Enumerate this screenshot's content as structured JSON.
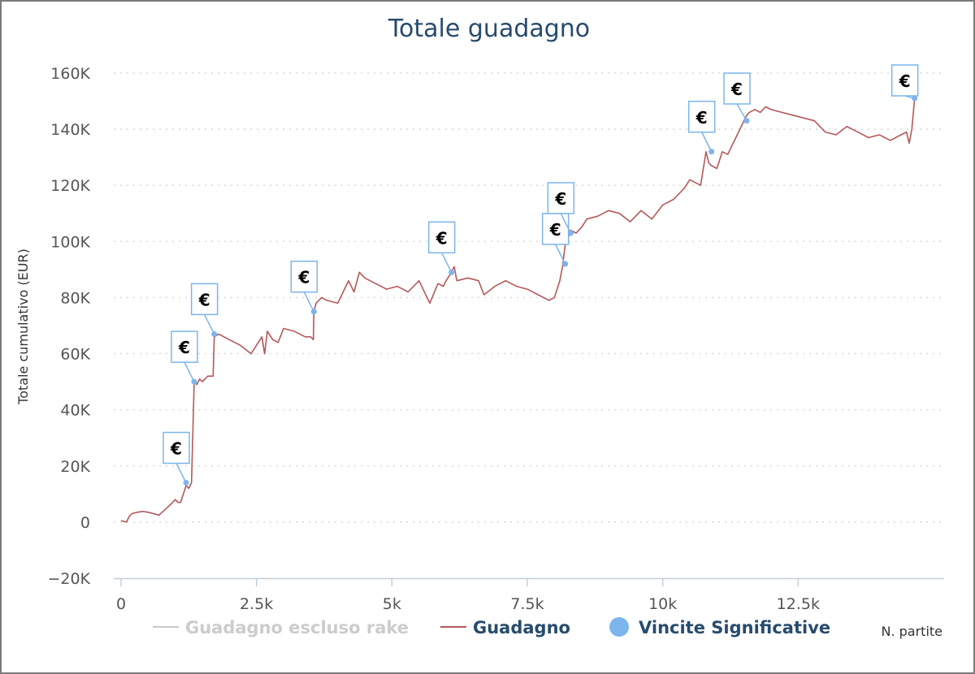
{
  "chart_data": {
    "type": "line",
    "title": "Totale guadagno",
    "ylabel": "Totale cumulativo (EUR)",
    "xlabel": "N. partite",
    "xlim": [
      0,
      15000
    ],
    "ylim": [
      -20000,
      160000
    ],
    "y_ticks": [
      -20000,
      0,
      20000,
      40000,
      60000,
      80000,
      100000,
      120000,
      140000,
      160000
    ],
    "y_tick_labels": [
      "−20K",
      "0",
      "20K",
      "40K",
      "60K",
      "80K",
      "100K",
      "120K",
      "140K",
      "160K"
    ],
    "x_ticks": [
      0,
      2500,
      5000,
      7500,
      10000,
      12500
    ],
    "x_tick_labels": [
      "0",
      "2.5k",
      "5k",
      "7.5k",
      "10k",
      "12.5k"
    ],
    "grid": "horizontal dotted",
    "legend_position": "bottom",
    "legend": [
      {
        "label": "Guadagno escluso rake",
        "symbol": "line",
        "color": "#c8c8c8",
        "state": "hidden"
      },
      {
        "label": "Guadagno",
        "symbol": "line",
        "color": "#b5585a",
        "state": "visible"
      },
      {
        "label": "Vincite Significative",
        "symbol": "circle",
        "color": "#7cb5ec",
        "state": "visible"
      }
    ],
    "series": [
      {
        "name": "Guadagno",
        "color": "#b5585a",
        "x": [
          0,
          100,
          150,
          200,
          300,
          400,
          500,
          700,
          900,
          1000,
          1050,
          1100,
          1200,
          1250,
          1300,
          1350,
          1400,
          1450,
          1500,
          1600,
          1700,
          1720,
          1800,
          1900,
          2000,
          2200,
          2400,
          2600,
          2650,
          2700,
          2800,
          2900,
          3000,
          3200,
          3300,
          3400,
          3500,
          3550,
          3560,
          3600,
          3700,
          3800,
          4000,
          4200,
          4300,
          4400,
          4500,
          4700,
          4900,
          5100,
          5300,
          5500,
          5700,
          5850,
          5950,
          6000,
          6100,
          6150,
          6200,
          6400,
          6600,
          6700,
          6900,
          7100,
          7300,
          7500,
          7700,
          7900,
          8000,
          8100,
          8150,
          8200,
          8250,
          8300,
          8400,
          8500,
          8600,
          8800,
          9000,
          9200,
          9400,
          9600,
          9800,
          10000,
          10200,
          10400,
          10500,
          10600,
          10700,
          10800,
          10850,
          10900,
          11000,
          11100,
          11200,
          11300,
          11400,
          11500,
          11550,
          11600,
          11700,
          11800,
          11900,
          12000,
          12200,
          12400,
          12600,
          12800,
          13000,
          13200,
          13400,
          13600,
          13800,
          14000,
          14200,
          14400,
          14500,
          14550,
          14600,
          14650
        ],
        "y": [
          500,
          0,
          2000,
          3000,
          3500,
          3800,
          3500,
          2500,
          6000,
          8000,
          7000,
          7000,
          13000,
          12000,
          14000,
          50000,
          49000,
          51000,
          50000,
          52000,
          52000,
          66000,
          67000,
          66000,
          65000,
          63000,
          60000,
          66000,
          60000,
          68000,
          65000,
          64000,
          69000,
          68000,
          67000,
          66000,
          66000,
          65000,
          75000,
          78000,
          80000,
          79000,
          78000,
          86000,
          82000,
          89000,
          87000,
          85000,
          83000,
          84000,
          82000,
          86000,
          78000,
          85000,
          84000,
          86000,
          89000,
          91000,
          86000,
          87000,
          86000,
          81000,
          84000,
          86000,
          84000,
          83000,
          81000,
          79000,
          80000,
          86000,
          91000,
          99000,
          101000,
          104000,
          103000,
          105000,
          108000,
          109000,
          111000,
          110000,
          107000,
          111000,
          108000,
          113000,
          115000,
          119000,
          122000,
          121000,
          120000,
          132000,
          128000,
          127000,
          126000,
          132000,
          131000,
          135000,
          139000,
          143000,
          145000,
          146000,
          147000,
          146000,
          148000,
          147000,
          146000,
          145000,
          144000,
          143000,
          139000,
          138000,
          141000,
          139000,
          137000,
          138000,
          136000,
          138000,
          139000,
          135000,
          140000,
          151000
        ]
      }
    ],
    "markers": {
      "name": "Vincite Significative",
      "symbol": "€",
      "points": [
        {
          "x": 1200,
          "y": 14000
        },
        {
          "x": 1350,
          "y": 50000
        },
        {
          "x": 1720,
          "y": 67000
        },
        {
          "x": 3560,
          "y": 75000
        },
        {
          "x": 6100,
          "y": 89000
        },
        {
          "x": 8200,
          "y": 92000
        },
        {
          "x": 8300,
          "y": 103000
        },
        {
          "x": 10900,
          "y": 132000
        },
        {
          "x": 11550,
          "y": 143000
        },
        {
          "x": 14650,
          "y": 151000
        }
      ]
    }
  },
  "colors": {
    "title": "#274b6d",
    "grid": "#d8d8d8",
    "axis": "#c0d0e0",
    "marker": "#7cb5ec",
    "flag_border": "#7cb5ec"
  }
}
